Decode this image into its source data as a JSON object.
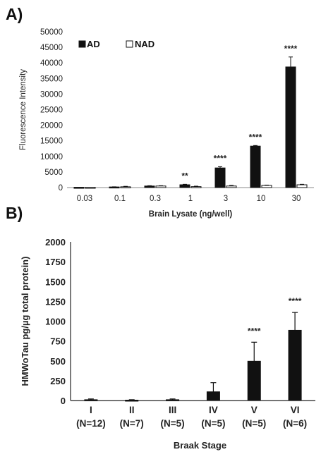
{
  "chart_data": [
    {
      "type": "bar",
      "panel_label": "A)",
      "xlabel": "Brain Lysate (ng/well)",
      "ylabel": "Fluorescence Intensity",
      "ylim": [
        0,
        50000
      ],
      "yticks": [
        "0",
        "5000",
        "10000",
        "15000",
        "20000",
        "25000",
        "30000",
        "35000",
        "40000",
        "45000",
        "50000"
      ],
      "categories": [
        "0.03",
        "0.1",
        "0.3",
        "1",
        "3",
        "10",
        "30"
      ],
      "legend_position": "top-left",
      "series": [
        {
          "name": "AD",
          "color": "#111111",
          "values": [
            100,
            200,
            500,
            900,
            6300,
            13300,
            38700
          ],
          "errors": [
            0,
            50,
            100,
            150,
            400,
            200,
            3200
          ]
        },
        {
          "name": "NAD",
          "color": "#ffffff",
          "values": [
            100,
            250,
            500,
            300,
            500,
            700,
            900
          ],
          "errors": [
            0,
            150,
            100,
            150,
            200,
            100,
            150
          ]
        }
      ],
      "annotations": [
        "",
        "",
        "",
        "**",
        "****",
        "****",
        "****"
      ]
    },
    {
      "type": "bar",
      "panel_label": "B)",
      "xlabel": "Braak Stage",
      "ylabel": "HMWoTau pg/µg total protein)",
      "ylim": [
        0,
        2000
      ],
      "yticks": [
        "0",
        "250",
        "500",
        "750",
        "1000",
        "1250",
        "1500",
        "1750",
        "2000"
      ],
      "categories": [
        "I",
        "II",
        "III",
        "IV",
        "V",
        "VI"
      ],
      "category_sublabels": [
        "(N=12)",
        "(N=7)",
        "(N=5)",
        "(N=5)",
        "(N=5)",
        "(N=6)"
      ],
      "series": [
        {
          "color": "#111111",
          "values": [
            10,
            5,
            10,
            110,
            495,
            885
          ],
          "errors": [
            10,
            5,
            10,
            115,
            240,
            225
          ]
        }
      ],
      "annotations": [
        "",
        "",
        "",
        "",
        "****",
        "****"
      ]
    }
  ]
}
